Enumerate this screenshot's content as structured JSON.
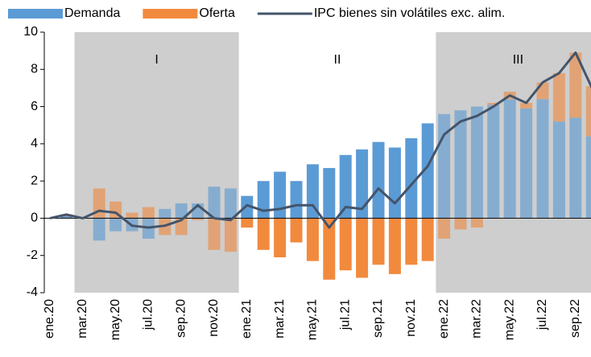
{
  "chart_data": {
    "type": "stacked_bar_line",
    "categories": [
      "ene.20",
      null,
      "mar.20",
      null,
      "may.20",
      null,
      "jul.20",
      null,
      "sep.20",
      null,
      "nov.20",
      null,
      "ene.21",
      null,
      "mar.21",
      null,
      "may.21",
      null,
      "jul.21",
      null,
      "sep.21",
      null,
      "nov.21",
      null,
      "ene.22",
      null,
      "mar.22",
      null,
      "may.22",
      null,
      "jul.22",
      null,
      "sep.22",
      null
    ],
    "series": [
      {
        "name": "Demanda",
        "color": "#5b9bd5",
        "kind": "bar",
        "values": [
          0,
          0.1,
          0,
          -1.2,
          -0.7,
          -0.7,
          -1.1,
          0.5,
          0.8,
          0.8,
          1.7,
          1.6,
          1.2,
          2.0,
          2.5,
          2.0,
          2.9,
          2.7,
          3.4,
          3.7,
          4.1,
          3.8,
          4.3,
          5.1,
          5.6,
          5.8,
          6.0,
          6.1,
          6.4,
          5.9,
          6.4,
          5.2,
          5.4,
          4.4
        ]
      },
      {
        "name": "Oferta",
        "color": "#f28a3e",
        "kind": "bar",
        "values": [
          0,
          0.1,
          0,
          1.6,
          0.9,
          0.3,
          0.6,
          -0.9,
          -0.9,
          -0.1,
          -1.7,
          -1.8,
          -0.5,
          -1.7,
          -2.1,
          -1.3,
          -2.3,
          -3.3,
          -2.8,
          -3.2,
          -2.5,
          -3.0,
          -2.5,
          -2.3,
          -1.1,
          -0.6,
          -0.5,
          0.1,
          0.4,
          0.3,
          0.9,
          2.6,
          3.5,
          2.7
        ]
      },
      {
        "name": "IPC bienes sin volátiles exc. alim.",
        "color": "#44546a",
        "kind": "line",
        "values": [
          0,
          0.2,
          0,
          0.4,
          0.3,
          -0.4,
          -0.5,
          -0.4,
          -0.1,
          0.7,
          0,
          -0.1,
          0.7,
          0.4,
          0.5,
          0.7,
          0.7,
          -0.5,
          0.6,
          0.5,
          1.6,
          0.8,
          1.8,
          2.8,
          4.5,
          5.2,
          5.5,
          6.0,
          6.6,
          6.2,
          7.3,
          7.8,
          8.9,
          7.0
        ]
      }
    ],
    "regions": [
      {
        "label": "I",
        "start": 2,
        "end": 11,
        "shaded": true
      },
      {
        "label": "II",
        "start": 12,
        "end": 23,
        "shaded": false
      },
      {
        "label": "III",
        "start": 24,
        "end": 33,
        "shaded": true
      }
    ],
    "ylim": [
      -4,
      10
    ],
    "yticks": [
      -4,
      -2,
      0,
      2,
      4,
      6,
      8,
      10
    ],
    "legend": "top"
  }
}
